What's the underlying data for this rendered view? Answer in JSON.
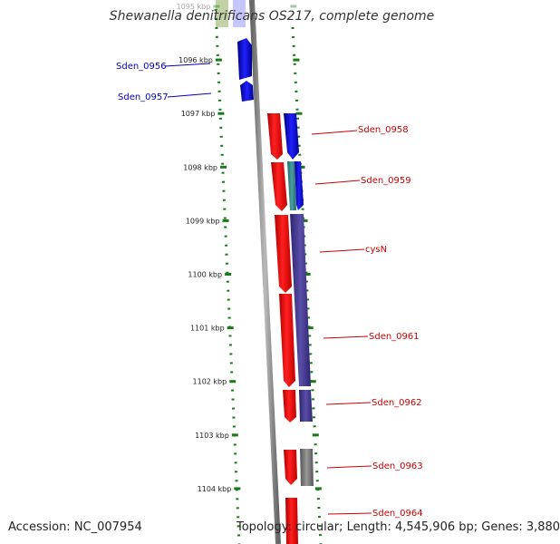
{
  "title": "Shewanella denitrificans OS217, complete genome",
  "footer": {
    "accession": "Accession: NC_007954",
    "summary": "Topology: circular; Length: 4,545,906 bp; Genes: 3,880"
  },
  "colors": {
    "forward_strand": "#0000ee",
    "reverse_strand": "#ee0000",
    "cds_other": "#4a3d8f",
    "cds_teal": "#3a8a8a",
    "cds_gray": "#777777",
    "cds_olive": "#7a9a3a",
    "backbone": "#888888",
    "ticks": "#1a7a1a",
    "label_blue": "#0000bb",
    "label_red": "#cc0000"
  },
  "scale_labels": [
    "1095 kbp",
    "1096 kbp",
    "1097 kbp",
    "1098 kbp",
    "1099 kbp",
    "1100 kbp",
    "1101 kbp",
    "1102 kbp",
    "1103 kbp",
    "1104 kbp"
  ],
  "genes": [
    {
      "name": "Sden_0956",
      "side": "left"
    },
    {
      "name": "Sden_0957",
      "side": "left"
    },
    {
      "name": "Sden_0958",
      "side": "right"
    },
    {
      "name": "Sden_0959",
      "side": "right"
    },
    {
      "name": "cysN",
      "side": "right"
    },
    {
      "name": "Sden_0961",
      "side": "right"
    },
    {
      "name": "Sden_0962",
      "side": "right"
    },
    {
      "name": "Sden_0963",
      "side": "right"
    },
    {
      "name": "Sden_0964",
      "side": "right"
    }
  ]
}
